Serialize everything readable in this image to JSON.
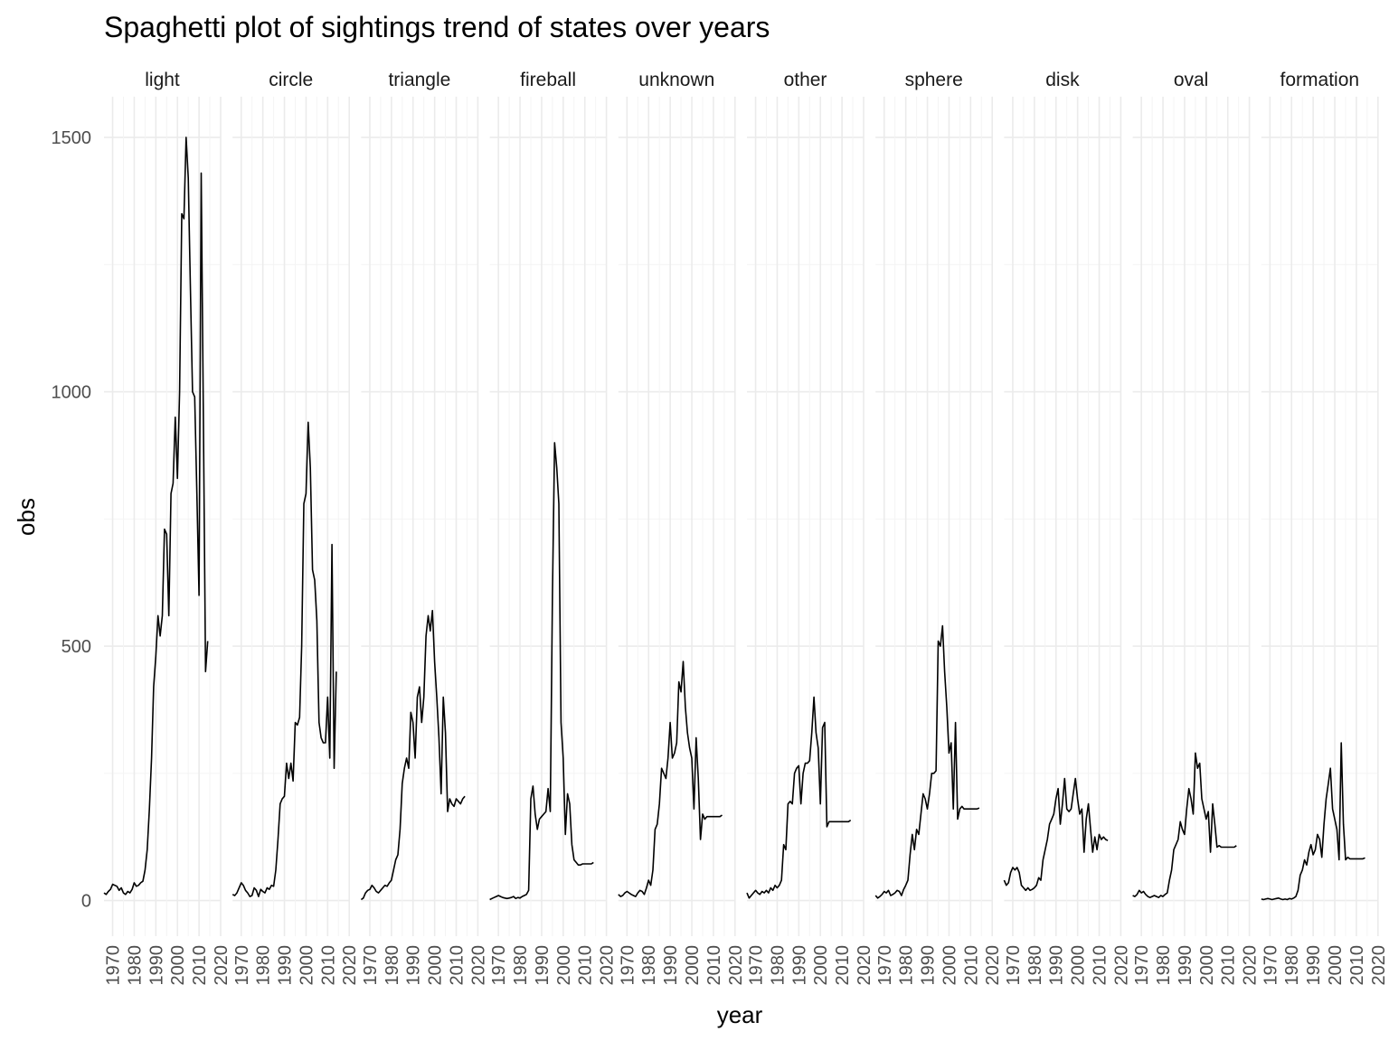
{
  "chart_data": {
    "type": "line",
    "title": "Spaghetti plot of sightings trend of states over years",
    "xlabel": "year",
    "ylabel": "obs",
    "xlim": [
      1966,
      2020
    ],
    "ylim": [
      -70,
      1580
    ],
    "x_ticks": [
      1970,
      1980,
      1990,
      2000,
      2010,
      2020
    ],
    "y_ticks": [
      0,
      500,
      1000,
      1500
    ],
    "grid": true,
    "legend": "none",
    "facets": [
      {
        "name": "light",
        "x": [
          1966,
          1967,
          1968,
          1969,
          1970,
          1971,
          1972,
          1973,
          1974,
          1975,
          1976,
          1977,
          1978,
          1979,
          1980,
          1981,
          1982,
          1983,
          1984,
          1985,
          1986,
          1987,
          1988,
          1989,
          1990,
          1991,
          1992,
          1993,
          1994,
          1995,
          1996,
          1997,
          1998,
          1999,
          2000,
          2001,
          2002,
          2003,
          2004,
          2005,
          2006,
          2007,
          2008,
          2009,
          2010,
          2011,
          2012,
          2013,
          2014
        ],
        "y": [
          15,
          12,
          18,
          22,
          32,
          30,
          28,
          20,
          25,
          15,
          12,
          18,
          15,
          22,
          35,
          28,
          30,
          35,
          38,
          60,
          100,
          180,
          280,
          420,
          480,
          560,
          520,
          560,
          730,
          720,
          560,
          800,
          820,
          950,
          830,
          1000,
          1350,
          1340,
          1500,
          1420,
          1200,
          1000,
          990,
          800,
          600,
          1430,
          950,
          450,
          510
        ]
      },
      {
        "name": "circle",
        "x": [
          1966,
          1967,
          1968,
          1969,
          1970,
          1971,
          1972,
          1973,
          1974,
          1975,
          1976,
          1977,
          1978,
          1979,
          1980,
          1981,
          1982,
          1983,
          1984,
          1985,
          1986,
          1987,
          1988,
          1989,
          1990,
          1991,
          1992,
          1993,
          1994,
          1995,
          1996,
          1997,
          1998,
          1999,
          2000,
          2001,
          2002,
          2003,
          2004,
          2005,
          2006,
          2007,
          2008,
          2009,
          2010,
          2011,
          2012,
          2013,
          2014
        ],
        "y": [
          12,
          10,
          15,
          25,
          35,
          30,
          20,
          15,
          8,
          10,
          25,
          20,
          8,
          22,
          18,
          15,
          25,
          22,
          30,
          28,
          60,
          120,
          190,
          200,
          205,
          270,
          240,
          270,
          235,
          350,
          345,
          360,
          500,
          780,
          800,
          940,
          850,
          650,
          630,
          550,
          350,
          320,
          310,
          310,
          400,
          280,
          700,
          260,
          450
        ]
      },
      {
        "name": "triangle",
        "x": [
          1966,
          1967,
          1968,
          1969,
          1970,
          1971,
          1972,
          1973,
          1974,
          1975,
          1976,
          1977,
          1978,
          1979,
          1980,
          1981,
          1982,
          1983,
          1984,
          1985,
          1986,
          1987,
          1988,
          1989,
          1990,
          1991,
          1992,
          1993,
          1994,
          1995,
          1996,
          1997,
          1998,
          1999,
          2000,
          2001,
          2002,
          2003,
          2004,
          2005,
          2006,
          2007,
          2008,
          2009,
          2010,
          2011,
          2012,
          2013,
          2014
        ],
        "y": [
          2,
          5,
          15,
          20,
          22,
          30,
          25,
          18,
          15,
          20,
          25,
          30,
          28,
          35,
          40,
          60,
          80,
          90,
          140,
          230,
          260,
          280,
          260,
          370,
          350,
          280,
          400,
          420,
          350,
          400,
          520,
          560,
          530,
          570,
          470,
          400,
          320,
          210,
          400,
          330,
          175,
          200,
          190,
          185,
          200,
          195,
          190,
          200,
          205
        ]
      },
      {
        "name": "fireball",
        "x": [
          1966,
          1967,
          1968,
          1969,
          1970,
          1971,
          1972,
          1973,
          1974,
          1975,
          1976,
          1977,
          1978,
          1979,
          1980,
          1981,
          1982,
          1983,
          1984,
          1985,
          1986,
          1987,
          1988,
          1989,
          1990,
          1991,
          1992,
          1993,
          1994,
          1995,
          1996,
          1997,
          1998,
          1999,
          2000,
          2001,
          2002,
          2003,
          2004,
          2005,
          2006,
          2007,
          2008,
          2009,
          2010,
          2011,
          2012,
          2013,
          2014
        ],
        "y": [
          2,
          4,
          6,
          8,
          10,
          8,
          6,
          5,
          4,
          5,
          6,
          8,
          4,
          6,
          5,
          8,
          10,
          12,
          20,
          200,
          225,
          170,
          140,
          160,
          165,
          170,
          175,
          220,
          175,
          600,
          900,
          850,
          780,
          350,
          280,
          130,
          210,
          190,
          110,
          80,
          75,
          70,
          70,
          72,
          72,
          72,
          72,
          72,
          75
        ]
      },
      {
        "name": "unknown",
        "x": [
          1966,
          1967,
          1968,
          1969,
          1970,
          1971,
          1972,
          1973,
          1974,
          1975,
          1976,
          1977,
          1978,
          1979,
          1980,
          1981,
          1982,
          1983,
          1984,
          1985,
          1986,
          1987,
          1988,
          1989,
          1990,
          1991,
          1992,
          1993,
          1994,
          1995,
          1996,
          1997,
          1998,
          1999,
          2000,
          2001,
          2002,
          2003,
          2004,
          2005,
          2006,
          2007,
          2008,
          2009,
          2010,
          2011,
          2012,
          2013,
          2014
        ],
        "y": [
          12,
          8,
          10,
          15,
          18,
          15,
          12,
          10,
          8,
          15,
          20,
          18,
          12,
          25,
          40,
          30,
          60,
          140,
          150,
          190,
          260,
          250,
          240,
          280,
          350,
          280,
          290,
          310,
          430,
          410,
          470,
          380,
          330,
          300,
          280,
          180,
          320,
          240,
          120,
          170,
          160,
          165,
          165,
          165,
          165,
          165,
          165,
          165,
          168
        ]
      },
      {
        "name": "other",
        "x": [
          1966,
          1967,
          1968,
          1969,
          1970,
          1971,
          1972,
          1973,
          1974,
          1975,
          1976,
          1977,
          1978,
          1979,
          1980,
          1981,
          1982,
          1983,
          1984,
          1985,
          1986,
          1987,
          1988,
          1989,
          1990,
          1991,
          1992,
          1993,
          1994,
          1995,
          1996,
          1997,
          1998,
          1999,
          2000,
          2001,
          2002,
          2003,
          2004,
          2005,
          2006,
          2007,
          2008,
          2009,
          2010,
          2011,
          2012,
          2013,
          2014
        ],
        "y": [
          15,
          5,
          10,
          15,
          20,
          15,
          12,
          18,
          15,
          20,
          15,
          25,
          20,
          30,
          25,
          30,
          40,
          110,
          100,
          190,
          195,
          190,
          250,
          260,
          265,
          190,
          250,
          270,
          270,
          275,
          330,
          400,
          330,
          300,
          190,
          340,
          350,
          145,
          155,
          155,
          155,
          155,
          155,
          155,
          155,
          155,
          155,
          155,
          158
        ]
      },
      {
        "name": "sphere",
        "x": [
          1966,
          1967,
          1968,
          1969,
          1970,
          1971,
          1972,
          1973,
          1974,
          1975,
          1976,
          1977,
          1978,
          1979,
          1980,
          1981,
          1982,
          1983,
          1984,
          1985,
          1986,
          1987,
          1988,
          1989,
          1990,
          1991,
          1992,
          1993,
          1994,
          1995,
          1996,
          1997,
          1998,
          1999,
          2000,
          2001,
          2002,
          2003,
          2004,
          2005,
          2006,
          2007,
          2008,
          2009,
          2010,
          2011,
          2012,
          2013,
          2014
        ],
        "y": [
          10,
          5,
          8,
          12,
          18,
          15,
          20,
          10,
          12,
          15,
          20,
          18,
          10,
          22,
          30,
          40,
          90,
          130,
          100,
          140,
          130,
          170,
          210,
          200,
          180,
          210,
          250,
          250,
          255,
          510,
          500,
          540,
          450,
          380,
          290,
          310,
          180,
          350,
          160,
          180,
          185,
          180,
          180,
          180,
          180,
          180,
          180,
          180,
          182
        ]
      },
      {
        "name": "disk",
        "x": [
          1966,
          1967,
          1968,
          1969,
          1970,
          1971,
          1972,
          1973,
          1974,
          1975,
          1976,
          1977,
          1978,
          1979,
          1980,
          1981,
          1982,
          1983,
          1984,
          1985,
          1986,
          1987,
          1988,
          1989,
          1990,
          1991,
          1992,
          1993,
          1994,
          1995,
          1996,
          1997,
          1998,
          1999,
          2000,
          2001,
          2002,
          2003,
          2004,
          2005,
          2006,
          2007,
          2008,
          2009,
          2010,
          2011,
          2012,
          2013,
          2014
        ],
        "y": [
          40,
          30,
          35,
          55,
          65,
          60,
          65,
          55,
          30,
          25,
          20,
          25,
          20,
          22,
          25,
          30,
          45,
          40,
          80,
          100,
          120,
          150,
          160,
          170,
          200,
          220,
          150,
          190,
          240,
          180,
          175,
          180,
          210,
          240,
          200,
          170,
          180,
          95,
          160,
          190,
          140,
          95,
          125,
          100,
          130,
          120,
          125,
          120,
          118
        ]
      },
      {
        "name": "oval",
        "x": [
          1966,
          1967,
          1968,
          1969,
          1970,
          1971,
          1972,
          1973,
          1974,
          1975,
          1976,
          1977,
          1978,
          1979,
          1980,
          1981,
          1982,
          1983,
          1984,
          1985,
          1986,
          1987,
          1988,
          1989,
          1990,
          1991,
          1992,
          1993,
          1994,
          1995,
          1996,
          1997,
          1998,
          1999,
          2000,
          2001,
          2002,
          2003,
          2004,
          2005,
          2006,
          2007,
          2008,
          2009,
          2010,
          2011,
          2012,
          2013,
          2014
        ],
        "y": [
          10,
          8,
          12,
          20,
          15,
          18,
          12,
          8,
          6,
          8,
          10,
          8,
          6,
          10,
          8,
          12,
          15,
          40,
          60,
          100,
          110,
          120,
          155,
          140,
          130,
          180,
          220,
          200,
          170,
          290,
          260,
          270,
          200,
          180,
          160,
          175,
          95,
          190,
          150,
          105,
          108,
          105,
          105,
          105,
          105,
          105,
          105,
          105,
          108
        ]
      },
      {
        "name": "formation",
        "x": [
          1966,
          1967,
          1968,
          1969,
          1970,
          1971,
          1972,
          1973,
          1974,
          1975,
          1976,
          1977,
          1978,
          1979,
          1980,
          1981,
          1982,
          1983,
          1984,
          1985,
          1986,
          1987,
          1988,
          1989,
          1990,
          1991,
          1992,
          1993,
          1994,
          1995,
          1996,
          1997,
          1998,
          1999,
          2000,
          2001,
          2002,
          2003,
          2004,
          2005,
          2006,
          2007,
          2008,
          2009,
          2010,
          2011,
          2012,
          2013,
          2014
        ],
        "y": [
          3,
          2,
          3,
          4,
          3,
          2,
          3,
          4,
          5,
          3,
          2,
          3,
          2,
          4,
          3,
          5,
          8,
          20,
          50,
          60,
          80,
          70,
          95,
          110,
          90,
          100,
          130,
          120,
          85,
          150,
          200,
          230,
          260,
          180,
          160,
          140,
          80,
          310,
          150,
          80,
          85,
          82,
          82,
          82,
          82,
          82,
          82,
          82,
          84
        ]
      }
    ]
  }
}
